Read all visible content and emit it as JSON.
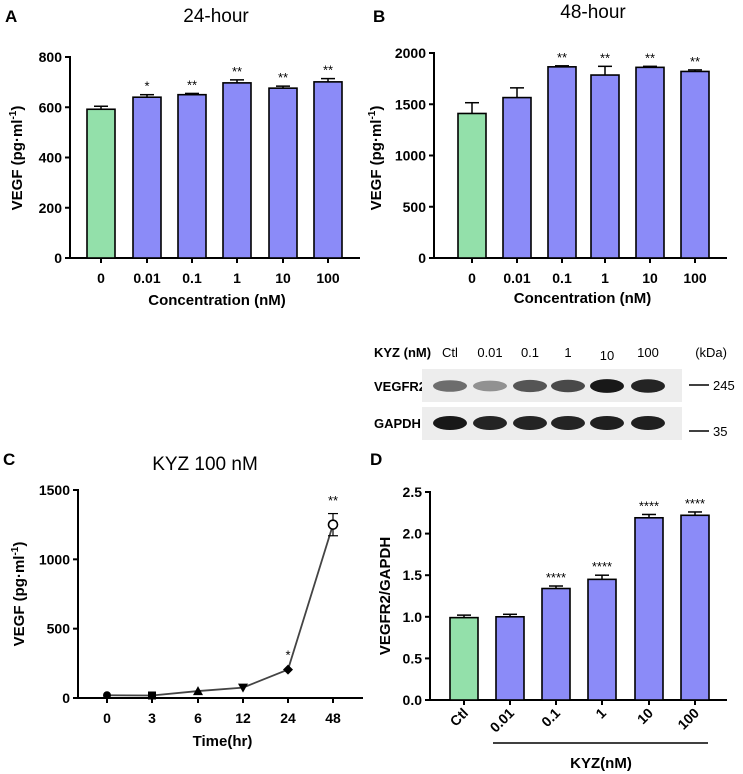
{
  "colors": {
    "control": "#93e0aa",
    "treated": "#8b8bf8",
    "axis": "#000000",
    "line": "#444444"
  },
  "chart_data": [
    {
      "panel": "A",
      "type": "bar",
      "title": "24-hour",
      "xlabel": "Concentration (nM)",
      "ylabel": "VEGF (pg·ml",
      "ylabel_sup": "-1",
      "ylabel_close": ")",
      "ylim": [
        0,
        800
      ],
      "yticks": [
        "0",
        "200",
        "400",
        "600",
        "800"
      ],
      "categories": [
        "0",
        "0.01",
        "0.1",
        "1",
        "10",
        "100"
      ],
      "values": [
        592,
        640,
        650,
        697,
        676,
        701
      ],
      "errors": [
        12,
        10,
        5,
        12,
        8,
        13
      ],
      "significance": [
        "",
        "*",
        "**",
        "**",
        "**",
        "**"
      ]
    },
    {
      "panel": "B",
      "type": "bar",
      "title": "48-hour",
      "xlabel": "Concentration (nM)",
      "ylabel": "VEGF (pg·ml",
      "ylabel_sup": "-1",
      "ylabel_close": ")",
      "ylim": [
        0,
        2000
      ],
      "yticks": [
        "0",
        "500",
        "1000",
        "1500",
        "2000"
      ],
      "categories": [
        "0",
        "0.01",
        "0.1",
        "1",
        "10",
        "100"
      ],
      "values": [
        1410,
        1565,
        1865,
        1785,
        1860,
        1820
      ],
      "errors": [
        105,
        95,
        10,
        85,
        10,
        15
      ],
      "significance": [
        "",
        "",
        "**",
        "**",
        "**",
        "**"
      ]
    },
    {
      "panel": "C",
      "type": "line",
      "title": "KYZ 100 nM",
      "xlabel": "Time(hr)",
      "ylabel": "VEGF (pg·ml",
      "ylabel_sup": "-1",
      "ylabel_close": ")",
      "ylim": [
        0,
        1500
      ],
      "yticks": [
        "0",
        "500",
        "1000",
        "1500"
      ],
      "categories": [
        "0",
        "3",
        "6",
        "12",
        "24",
        "48"
      ],
      "values": [
        20,
        18,
        50,
        75,
        205,
        1250
      ],
      "errors": [
        5,
        5,
        5,
        10,
        10,
        80
      ],
      "markers": [
        "circle",
        "square",
        "triangle-up",
        "triangle-down",
        "diamond",
        "open-circle"
      ],
      "significance": [
        "",
        "",
        "",
        "",
        "*",
        "**"
      ]
    },
    {
      "panel": "D",
      "type": "bar",
      "title": "",
      "xlabel": "KYZ(nM)",
      "ylabel": "VEGFR2/GAPDH",
      "ylim": [
        0,
        2.5
      ],
      "yticks": [
        "0.0",
        "0.5",
        "1.0",
        "1.5",
        "2.0",
        "2.5"
      ],
      "categories": [
        "Ctl",
        "0.01",
        "0.1",
        "1",
        "10",
        "100"
      ],
      "values": [
        0.99,
        1.0,
        1.34,
        1.45,
        2.19,
        2.22
      ],
      "errors": [
        0.03,
        0.03,
        0.03,
        0.05,
        0.04,
        0.04
      ],
      "significance": [
        "",
        "",
        "****",
        "****",
        "****",
        "****"
      ]
    }
  ],
  "western_blot": {
    "header_label": "KYZ (nM)",
    "lanes": [
      "Ctl",
      "0.01",
      "0.1",
      "1",
      "10",
      "100"
    ],
    "unit_label": "(kDa)",
    "rows": [
      {
        "label": "VEGFR2",
        "marker": "245",
        "intensity": [
          0.6,
          0.45,
          0.7,
          0.75,
          0.95,
          0.9
        ]
      },
      {
        "label": "GAPDH",
        "marker": "35",
        "intensity": [
          0.95,
          0.9,
          0.9,
          0.9,
          0.92,
          0.92
        ]
      }
    ]
  }
}
